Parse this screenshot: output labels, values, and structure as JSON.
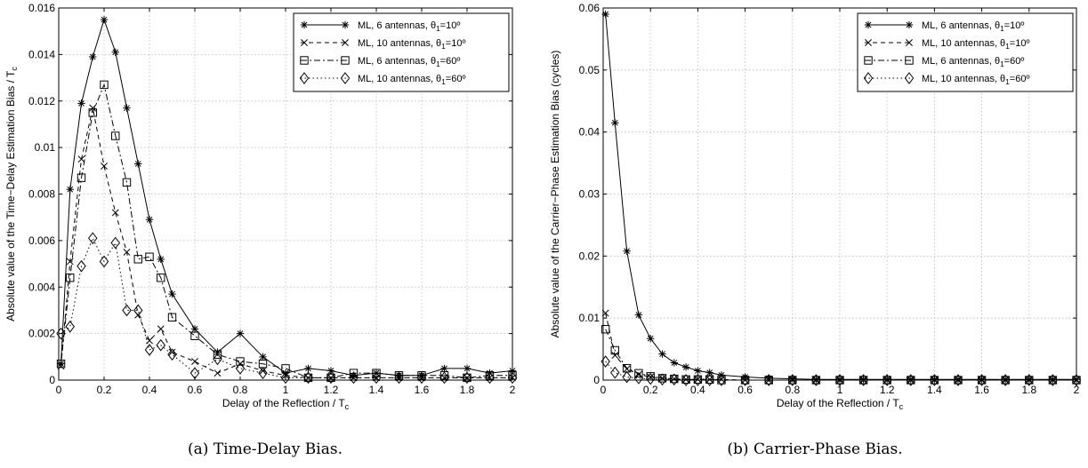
{
  "figure": {
    "captions": [
      "(a) Time-Delay Bias.",
      "(b) Carrier-Phase Bias."
    ]
  },
  "chart_data": [
    {
      "type": "line",
      "xlabel": "Delay of the Reflection / T",
      "xlabel_sub": "c",
      "ylabel": "Absolute value of the Time−Delay Estimation Bias / T",
      "ylabel_sub": "c",
      "xlim": [
        0,
        2
      ],
      "ylim": [
        0,
        0.016
      ],
      "xticks": [
        "0",
        "0.2",
        "0.4",
        "0.6",
        "0.8",
        "1",
        "1.2",
        "1.4",
        "1.6",
        "1.8",
        "2"
      ],
      "yticks": [
        "0",
        "0.002",
        "0.004",
        "0.006",
        "0.008",
        "0.01",
        "0.012",
        "0.014",
        "0.016"
      ],
      "grid": true,
      "legend_position": "top-right",
      "x": [
        0.01,
        0.05,
        0.1,
        0.15,
        0.2,
        0.25,
        0.3,
        0.35,
        0.4,
        0.45,
        0.5,
        0.6,
        0.7,
        0.8,
        0.9,
        1.0,
        1.1,
        1.2,
        1.3,
        1.4,
        1.5,
        1.6,
        1.7,
        1.8,
        1.9,
        2.0
      ],
      "series": [
        {
          "name": "ML, 6 antennas, θ",
          "name_sub": "1",
          "name_tail": "=10º",
          "marker": "star",
          "dash": "solid",
          "values": [
            0.0007,
            0.0082,
            0.0119,
            0.0139,
            0.0155,
            0.0141,
            0.0117,
            0.0093,
            0.0069,
            0.0052,
            0.0037,
            0.0022,
            0.0012,
            0.002,
            0.001,
            0.0003,
            0.0005,
            0.0004,
            0.0002,
            0.0003,
            0.0002,
            0.0002,
            0.0005,
            0.0005,
            0.0003,
            0.0004
          ]
        },
        {
          "name": "ML, 10 antennas, θ",
          "name_sub": "1",
          "name_tail": "=10º",
          "marker": "x",
          "dash": "dashed",
          "values": [
            0.0006,
            0.0051,
            0.0095,
            0.0117,
            0.0092,
            0.0072,
            0.0055,
            0.0028,
            0.0017,
            0.0022,
            0.0012,
            0.0008,
            0.0003,
            0.0007,
            0.0004,
            0.0002,
            0.0001,
            0.0001,
            0.0001,
            0.0001,
            0.0001,
            0.0001,
            0.0001,
            0.0001,
            0.0001,
            0.0001
          ]
        },
        {
          "name": "ML, 6 antennas, θ",
          "name_sub": "1",
          "name_tail": "=60º",
          "marker": "square",
          "dash": "dashdot",
          "values": [
            0.0007,
            0.0044,
            0.0087,
            0.0115,
            0.0127,
            0.0105,
            0.0085,
            0.0052,
            0.0053,
            0.0044,
            0.0027,
            0.0019,
            0.0011,
            0.0008,
            0.0007,
            0.0005,
            0.0001,
            0.0001,
            0.0003,
            0.0003,
            0.0002,
            0.0002,
            0.0002,
            0.0001,
            0.0002,
            0.0002
          ]
        },
        {
          "name": "ML, 10 antennas, θ",
          "name_sub": "1",
          "name_tail": "=60º",
          "marker": "diamond",
          "dash": "dotted",
          "values": [
            0.002,
            0.0023,
            0.0049,
            0.0061,
            0.0051,
            0.0059,
            0.003,
            0.003,
            0.0013,
            0.0015,
            0.0011,
            0.0003,
            0.0009,
            0.0005,
            0.0003,
            0.0001,
            0.0001,
            0.0001,
            0.0001,
            0.0001,
            0.0001,
            0.0001,
            0.0001,
            0.0001,
            0.0001,
            0.0001
          ]
        }
      ]
    },
    {
      "type": "line",
      "xlabel": "Delay of the Reflection / T",
      "xlabel_sub": "c",
      "ylabel": "Absolute value of the Carrier−Phase Estimation Bias (cycles)",
      "ylabel_sub": "",
      "xlim": [
        0,
        2
      ],
      "ylim": [
        0,
        0.06
      ],
      "xticks": [
        "0",
        "0.2",
        "0.4",
        "0.6",
        "0.8",
        "1",
        "1.2",
        "1.4",
        "1.6",
        "1.8",
        "2"
      ],
      "yticks": [
        "0",
        "0.01",
        "0.02",
        "0.03",
        "0.04",
        "0.05",
        "0.06"
      ],
      "grid": true,
      "legend_position": "top-right",
      "x": [
        0.01,
        0.05,
        0.1,
        0.15,
        0.2,
        0.25,
        0.3,
        0.35,
        0.4,
        0.45,
        0.5,
        0.6,
        0.7,
        0.8,
        0.9,
        1.0,
        1.1,
        1.2,
        1.3,
        1.4,
        1.5,
        1.6,
        1.7,
        1.8,
        1.9,
        2.0
      ],
      "series": [
        {
          "name": "ML, 6 antennas, θ",
          "name_sub": "1",
          "name_tail": "=10º",
          "marker": "star",
          "dash": "solid",
          "values": [
            0.059,
            0.0415,
            0.0208,
            0.0105,
            0.0067,
            0.0042,
            0.0028,
            0.0021,
            0.0015,
            0.0012,
            0.0008,
            0.0005,
            0.0003,
            0.0002,
            0.0001,
            0.0001,
            0.0001,
            0.0001,
            0.0001,
            0.0001,
            0.0001,
            0.0001,
            0.0001,
            0.0001,
            0.0001,
            0.0001
          ]
        },
        {
          "name": "ML, 10 antennas, θ",
          "name_sub": "1",
          "name_tail": "=10º",
          "marker": "x",
          "dash": "dashed",
          "values": [
            0.0108,
            0.004,
            0.0018,
            0.0009,
            0.0005,
            0.0003,
            0.0002,
            0.0001,
            0.0001,
            0.0001,
            0.0001,
            0.0,
            0.0,
            0.0,
            0.0,
            0.0,
            0.0,
            0.0,
            0.0,
            0.0,
            0.0,
            0.0,
            0.0,
            0.0,
            0.0,
            0.0
          ]
        },
        {
          "name": "ML, 6 antennas, θ",
          "name_sub": "1",
          "name_tail": "=60º",
          "marker": "square",
          "dash": "dashdot",
          "values": [
            0.0082,
            0.0048,
            0.0019,
            0.0011,
            0.0006,
            0.0003,
            0.0002,
            0.0001,
            0.0001,
            0.0001,
            0.0,
            0.0,
            0.0,
            0.0,
            0.0,
            0.0,
            0.0,
            0.0,
            0.0,
            0.0,
            0.0,
            0.0,
            0.0,
            0.0,
            0.0,
            0.0
          ]
        },
        {
          "name": "ML, 10 antennas, θ",
          "name_sub": "1",
          "name_tail": "=60º",
          "marker": "diamond",
          "dash": "dotted",
          "values": [
            0.003,
            0.0012,
            0.0005,
            0.0003,
            0.0002,
            0.0001,
            0.0001,
            0.0,
            0.0,
            0.0,
            0.0,
            0.0,
            0.0,
            0.0,
            0.0,
            0.0,
            0.0,
            0.0,
            0.0,
            0.0,
            0.0,
            0.0,
            0.0,
            0.0,
            0.0,
            0.0
          ]
        }
      ]
    }
  ]
}
